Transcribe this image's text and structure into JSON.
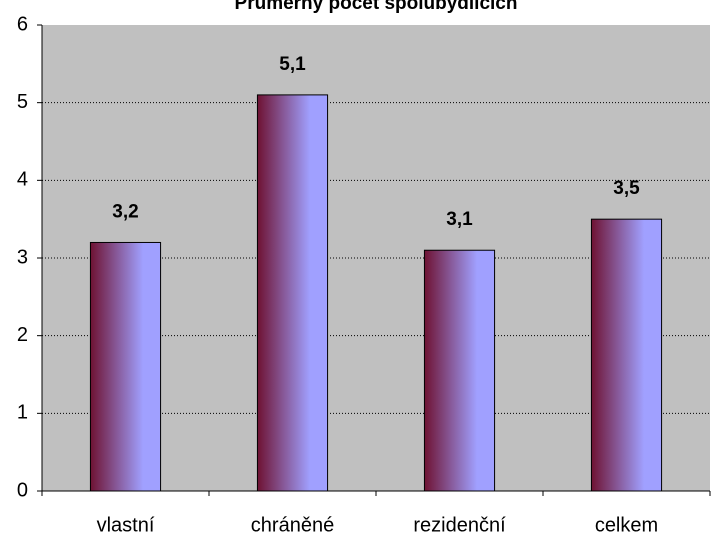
{
  "chart_data": {
    "type": "bar",
    "title": "Průměrný počet spolubydlících",
    "categories": [
      "vlastní",
      "chráněné",
      "rezidenční",
      "celkem"
    ],
    "values": [
      3.2,
      5.1,
      3.1,
      3.5
    ],
    "value_labels": [
      "3,2",
      "5,1",
      "3,1",
      "3,5"
    ],
    "gradient": [
      "#6e1232",
      "#a0a0ff"
    ],
    "ylim": [
      0,
      6
    ],
    "yticks": [
      0,
      1,
      2,
      3,
      4,
      5,
      6
    ],
    "grid": true
  }
}
